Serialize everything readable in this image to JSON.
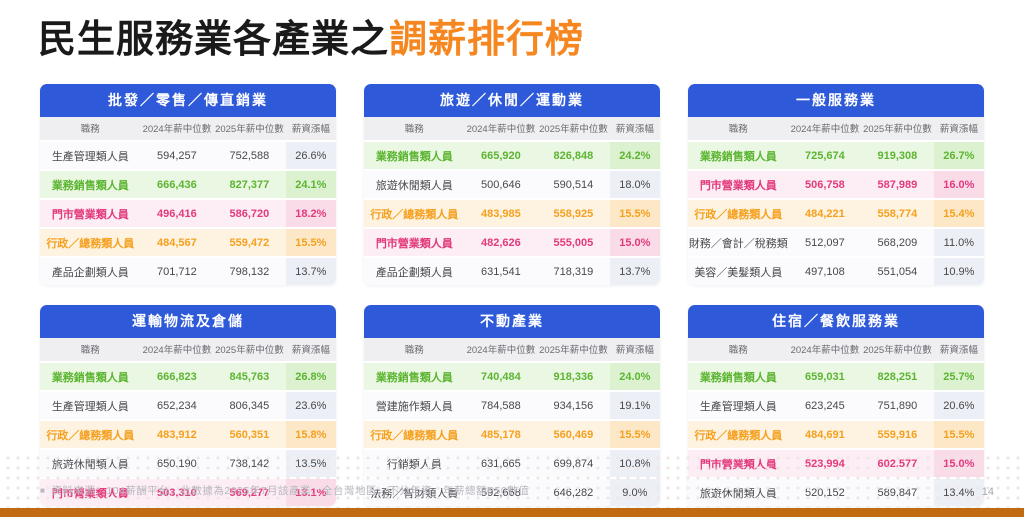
{
  "title": {
    "black": "民生服務業各產業之",
    "accent": "調薪排行榜"
  },
  "colors": {
    "accent_orange": "#F6861F",
    "header_blue": "#2E59D9",
    "highlight_green": "#5CB531",
    "highlight_pink": "#E23A7C",
    "highlight_orange": "#F5A01E",
    "bottom_bar": "#C06A12"
  },
  "columns": [
    "職務",
    "2024年薪中位數",
    "2025年薪中位數",
    "薪資漲幅"
  ],
  "tables": [
    {
      "industry": "批發／零售／傳直銷業",
      "rows": [
        {
          "job": "生產管理類人員",
          "median_2024": "594,257",
          "median_2025": "752,588",
          "growth": "26.6%",
          "highlight": "plain"
        },
        {
          "job": "業務銷售類人員",
          "median_2024": "666,436",
          "median_2025": "827,377",
          "growth": "24.1%",
          "highlight": "green"
        },
        {
          "job": "門市營業類人員",
          "median_2024": "496,416",
          "median_2025": "586,720",
          "growth": "18.2%",
          "highlight": "pink"
        },
        {
          "job": "行政／總務類人員",
          "median_2024": "484,567",
          "median_2025": "559,472",
          "growth": "15.5%",
          "highlight": "orange"
        },
        {
          "job": "產品企劃類人員",
          "median_2024": "701,712",
          "median_2025": "798,132",
          "growth": "13.7%",
          "highlight": "plain"
        }
      ]
    },
    {
      "industry": "旅遊／休閒／運動業",
      "rows": [
        {
          "job": "業務銷售類人員",
          "median_2024": "665,920",
          "median_2025": "826,848",
          "growth": "24.2%",
          "highlight": "green"
        },
        {
          "job": "旅遊休閒類人員",
          "median_2024": "500,646",
          "median_2025": "590,514",
          "growth": "18.0%",
          "highlight": "plain"
        },
        {
          "job": "行政／總務類人員",
          "median_2024": "483,985",
          "median_2025": "558,925",
          "growth": "15.5%",
          "highlight": "orange"
        },
        {
          "job": "門市營業類人員",
          "median_2024": "482,626",
          "median_2025": "555,005",
          "growth": "15.0%",
          "highlight": "pink"
        },
        {
          "job": "產品企劃類人員",
          "median_2024": "631,541",
          "median_2025": "718,319",
          "growth": "13.7%",
          "highlight": "plain"
        }
      ]
    },
    {
      "industry": "一般服務業",
      "rows": [
        {
          "job": "業務銷售類人員",
          "median_2024": "725,674",
          "median_2025": "919,308",
          "growth": "26.7%",
          "highlight": "green"
        },
        {
          "job": "門市營業類人員",
          "median_2024": "506,758",
          "median_2025": "587,989",
          "growth": "16.0%",
          "highlight": "pink"
        },
        {
          "job": "行政／總務類人員",
          "median_2024": "484,221",
          "median_2025": "558,774",
          "growth": "15.4%",
          "highlight": "orange"
        },
        {
          "job": "財務／會計／稅務類",
          "median_2024": "512,097",
          "median_2025": "568,209",
          "growth": "11.0%",
          "highlight": "plain"
        },
        {
          "job": "美容／美髮類人員",
          "median_2024": "497,108",
          "median_2025": "551,054",
          "growth": "10.9%",
          "highlight": "plain"
        }
      ]
    },
    {
      "industry": "運輸物流及倉儲",
      "rows": [
        {
          "job": "業務銷售類人員",
          "median_2024": "666,823",
          "median_2025": "845,763",
          "growth": "26.8%",
          "highlight": "green"
        },
        {
          "job": "生產管理類人員",
          "median_2024": "652,234",
          "median_2025": "806,345",
          "growth": "23.6%",
          "highlight": "plain"
        },
        {
          "job": "行政／總務類人員",
          "median_2024": "483,912",
          "median_2025": "560,351",
          "growth": "15.8%",
          "highlight": "orange"
        },
        {
          "job": "旅遊休閒類人員",
          "median_2024": "650,190",
          "median_2025": "738,142",
          "growth": "13.5%",
          "highlight": "plain"
        },
        {
          "job": "門市營業類人員",
          "median_2024": "503,310",
          "median_2025": "569,277",
          "growth": "13.1%",
          "highlight": "pink"
        }
      ]
    },
    {
      "industry": "不動產業",
      "rows": [
        {
          "job": "業務銷售類人員",
          "median_2024": "740,484",
          "median_2025": "918,336",
          "growth": "24.0%",
          "highlight": "green"
        },
        {
          "job": "營建施作類人員",
          "median_2024": "784,588",
          "median_2025": "934,156",
          "growth": "19.1%",
          "highlight": "plain"
        },
        {
          "job": "行政／總務類人員",
          "median_2024": "485,178",
          "median_2025": "560,469",
          "growth": "15.5%",
          "highlight": "orange"
        },
        {
          "job": "行銷類人員",
          "median_2024": "631,665",
          "median_2025": "699,874",
          "growth": "10.8%",
          "highlight": "plain"
        },
        {
          "job": "法務／智財類人員",
          "median_2024": "592,668",
          "median_2025": "646,282",
          "growth": "9.0%",
          "highlight": "plain"
        }
      ]
    },
    {
      "industry": "住宿／餐飲服務業",
      "rows": [
        {
          "job": "業務銷售類人員",
          "median_2024": "659,031",
          "median_2025": "828,251",
          "growth": "25.7%",
          "highlight": "green"
        },
        {
          "job": "生產管理類人員",
          "median_2024": "623,245",
          "median_2025": "751,890",
          "growth": "20.6%",
          "highlight": "plain"
        },
        {
          "job": "行政／總務類人員",
          "median_2024": "484,691",
          "median_2025": "559,916",
          "growth": "15.5%",
          "highlight": "orange"
        },
        {
          "job": "門市營業類人員",
          "median_2024": "523,994",
          "median_2025": "602,577",
          "growth": "15.0%",
          "highlight": "pink"
        },
        {
          "job": "旅遊休閒類人員",
          "median_2024": "520,152",
          "median_2025": "589,847",
          "growth": "13.4%",
          "highlight": "plain"
        }
      ]
    }
  ],
  "footer": {
    "bullet": "■",
    "source_note": "資料來源：104薪酬平台，此數據為2025年7月該產業、全台灣地區、不分年資、年薪總額P50數值",
    "page_number": "14"
  }
}
